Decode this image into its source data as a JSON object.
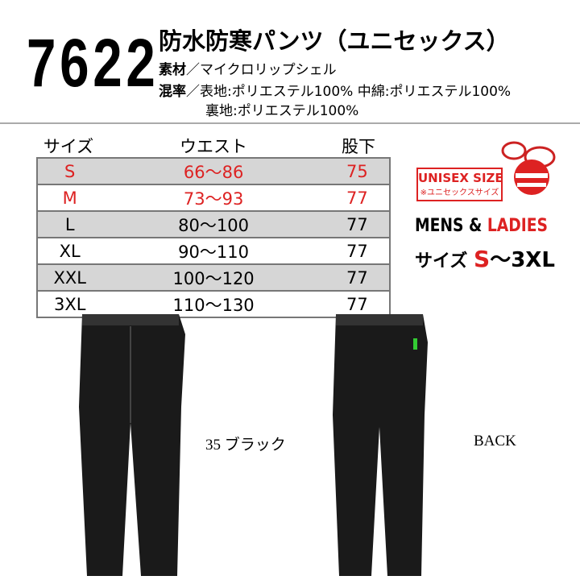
{
  "product": {
    "number": "7622",
    "title": "防水防寒パンツ（ユニセックス）",
    "material_label": "素材",
    "material": "／マイクロリップシェル",
    "composition_label": "混率",
    "composition_lines": [
      "／表地:ポリエステル100% 中綿:ポリエステル100%",
      "裏地:ポリエステル100%"
    ]
  },
  "size_table": {
    "headers": [
      "サイズ",
      "ウエスト",
      "股下"
    ],
    "rows": [
      [
        "S",
        "66〜86",
        "75"
      ],
      [
        "M",
        "73〜93",
        "77"
      ],
      [
        "L",
        "80〜100",
        "77"
      ],
      [
        "XL",
        "90〜110",
        "77"
      ],
      [
        "XXL",
        "100〜120",
        "77"
      ],
      [
        "3XL",
        "110〜130",
        "77"
      ]
    ],
    "highlight_rows": 2
  },
  "size_badge": {
    "label": "UNISEX SIZE",
    "note": "※ユニセックスサイズ",
    "mens": "MENS &",
    "ladies": "LADIES",
    "size_label": "サイズ",
    "size_from": "S",
    "size_to": "〜3XL"
  },
  "photos": {
    "front_caption": "35 ブラック",
    "back_caption": "BACK"
  }
}
